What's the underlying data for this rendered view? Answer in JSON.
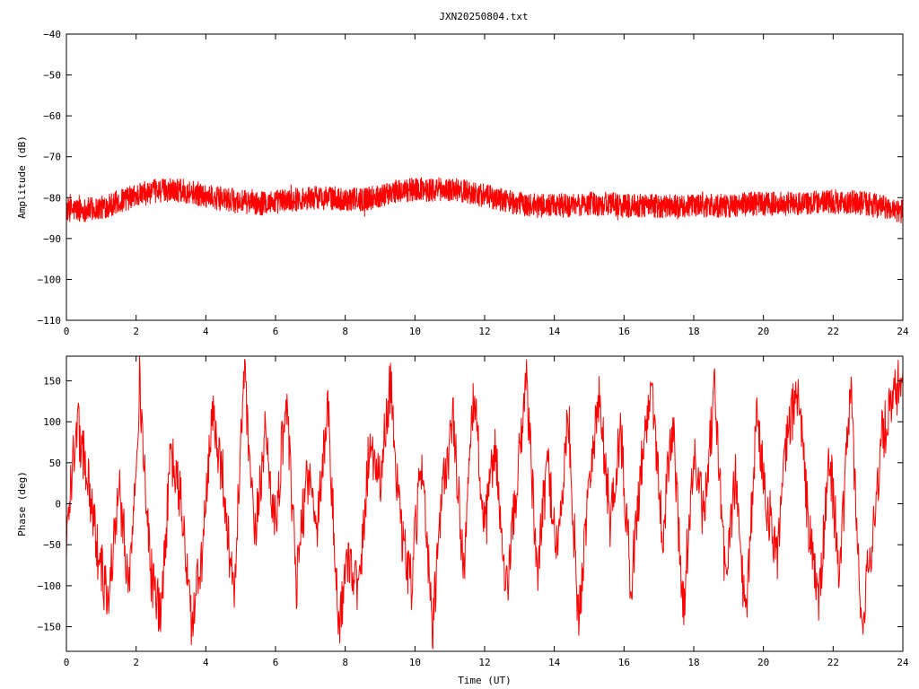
{
  "title": "JXN20250804.txt",
  "chart_data": [
    {
      "type": "line",
      "name": "amplitude-plot",
      "title": "JXN20250804.txt",
      "xlabel": "",
      "ylabel": "Amplitude (dB)",
      "xlim": [
        0,
        24
      ],
      "ylim": [
        -110,
        -40
      ],
      "xticks": [
        0,
        2,
        4,
        6,
        8,
        10,
        12,
        14,
        16,
        18,
        20,
        22,
        24
      ],
      "yticks": [
        -110,
        -100,
        -90,
        -80,
        -70,
        -60,
        -50,
        -40
      ],
      "grid": false,
      "color": "#ff0000",
      "series": [
        {
          "x": [
            0,
            0.5,
            1,
            1.5,
            2,
            2.5,
            3,
            3.5,
            4,
            4.5,
            5,
            5.5,
            6,
            6.5,
            7,
            7.5,
            8,
            8.5,
            9,
            9.5,
            10,
            10.5,
            11,
            11.5,
            12,
            12.5,
            13,
            13.5,
            14,
            14.5,
            15,
            15.5,
            16,
            16.5,
            17,
            17.5,
            18,
            18.5,
            19,
            19.5,
            20,
            20.5,
            21,
            21.5,
            22,
            22.5,
            23,
            23.5,
            24
          ],
          "y": [
            -83,
            -83,
            -82.5,
            -81,
            -79.5,
            -78.5,
            -78,
            -78.5,
            -79.5,
            -80.5,
            -81,
            -81.5,
            -81,
            -80.5,
            -80,
            -80,
            -80.5,
            -80.5,
            -79.5,
            -78.5,
            -78,
            -78,
            -78,
            -78.5,
            -79.5,
            -80.5,
            -81.5,
            -82,
            -82,
            -82,
            -81.5,
            -81.5,
            -82,
            -82,
            -82,
            -82,
            -82,
            -82,
            -82,
            -81.5,
            -81.5,
            -81.5,
            -81.5,
            -81,
            -81,
            -81,
            -81.5,
            -82.5,
            -83.5
          ],
          "noise_amplitude_db": 3
        }
      ]
    },
    {
      "type": "line",
      "name": "phase-plot",
      "title": "",
      "xlabel": "Time (UT)",
      "ylabel": "Phase (deg)",
      "xlim": [
        0,
        24
      ],
      "ylim": [
        -180,
        180
      ],
      "xticks": [
        0,
        2,
        4,
        6,
        8,
        10,
        12,
        14,
        16,
        18,
        20,
        22,
        24
      ],
      "yticks": [
        -150,
        -100,
        -50,
        0,
        50,
        100,
        150
      ],
      "grid": false,
      "color": "#ff0000",
      "series": [
        {
          "description_wrap": "phase wraps between -180 and 180",
          "x": [
            0,
            0.3,
            0.6,
            0.9,
            1.2,
            1.5,
            1.8,
            2.1,
            2.4,
            2.7,
            3.0,
            3.3,
            3.6,
            3.9,
            4.2,
            4.5,
            4.8,
            5.1,
            5.4,
            5.7,
            6.0,
            6.3,
            6.6,
            6.9,
            7.2,
            7.5,
            7.8,
            8.1,
            8.4,
            8.7,
            9.0,
            9.3,
            9.6,
            9.9,
            10.2,
            10.5,
            10.8,
            11.1,
            11.4,
            11.7,
            12.0,
            12.3,
            12.6,
            12.9,
            13.2,
            13.5,
            13.8,
            14.1,
            14.4,
            14.7,
            15.0,
            15.3,
            15.6,
            15.9,
            16.2,
            16.5,
            16.8,
            17.1,
            17.4,
            17.7,
            18.0,
            18.3,
            18.6,
            18.9,
            19.2,
            19.5,
            19.8,
            20.1,
            20.4,
            20.7,
            21.0,
            21.3,
            21.6,
            21.9,
            22.2,
            22.5,
            22.8,
            23.1,
            23.4,
            23.7,
            24.0
          ],
          "y": [
            -40,
            100,
            40,
            -60,
            -120,
            20,
            -100,
            150,
            -80,
            -140,
            60,
            0,
            -150,
            -60,
            110,
            30,
            -120,
            160,
            -50,
            90,
            -30,
            130,
            -100,
            40,
            -20,
            120,
            -150,
            -60,
            -110,
            80,
            30,
            150,
            -40,
            -100,
            60,
            -160,
            20,
            100,
            -80,
            140,
            -40,
            80,
            -120,
            10,
            160,
            -90,
            50,
            -60,
            110,
            -150,
            40,
            130,
            -20,
            90,
            -100,
            50,
            150,
            -40,
            100,
            -130,
            60,
            -20,
            140,
            -90,
            30,
            -150,
            110,
            0,
            -60,
            90,
            140,
            -30,
            -120,
            60,
            -90,
            150,
            -150,
            -50,
            80,
            120,
            160
          ]
        }
      ]
    }
  ]
}
